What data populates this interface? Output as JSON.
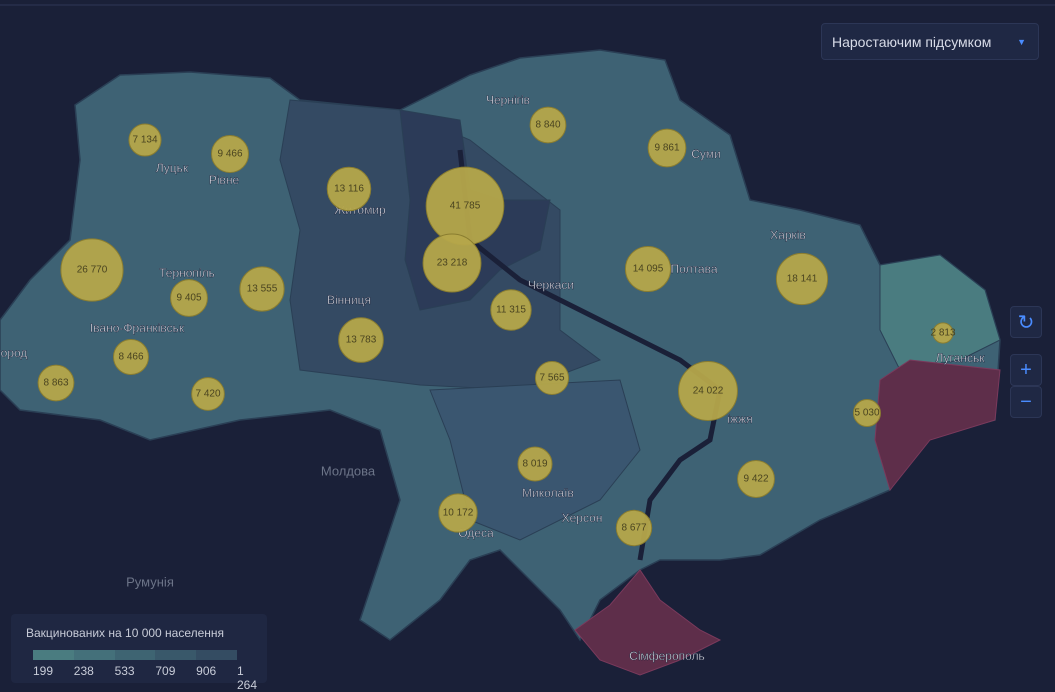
{
  "dropdown": "Наростаючим підсумком",
  "places": {
    "countries": [
      "Молдова",
      "Румунія"
    ],
    "cities": [
      "Луцьк",
      "Рівне",
      "Житомир",
      "Чернігів",
      "Суми",
      "Харків",
      "Полтава",
      "Черкаси",
      "Вінниця",
      "Тернопіль",
      "Івано-Франківськ",
      "город",
      "Луганськ",
      "іжжя",
      "Миколаїв",
      "Херсон",
      "Одеса",
      "Сімферополь"
    ]
  },
  "bubbles": [
    {
      "value": 7134,
      "label": "7 134"
    },
    {
      "value": 9466,
      "label": "9 466"
    },
    {
      "value": 13116,
      "label": "13 116"
    },
    {
      "value": 41785,
      "label": "41 785"
    },
    {
      "value": 8840,
      "label": "8 840"
    },
    {
      "value": 9861,
      "label": "9 861"
    },
    {
      "value": 26770,
      "label": "26 770"
    },
    {
      "value": 9405,
      "label": "9 405"
    },
    {
      "value": 13555,
      "label": "13 555"
    },
    {
      "value": 23218,
      "label": "23 218"
    },
    {
      "value": 11315,
      "label": "11 315"
    },
    {
      "value": 14095,
      "label": "14 095"
    },
    {
      "value": 18141,
      "label": "18 141"
    },
    {
      "value": 2813,
      "label": "2 813"
    },
    {
      "value": 13783,
      "label": "13 783"
    },
    {
      "value": 8466,
      "label": "8 466"
    },
    {
      "value": 8863,
      "label": "8 863"
    },
    {
      "value": 7420,
      "label": "7 420"
    },
    {
      "value": 7565,
      "label": "7 565"
    },
    {
      "value": 24022,
      "label": "24 022"
    },
    {
      "value": 5030,
      "label": "5 030"
    },
    {
      "value": 8019,
      "label": "8 019"
    },
    {
      "value": 9422,
      "label": "9 422"
    },
    {
      "value": 10172,
      "label": "10 172"
    },
    {
      "value": 8677,
      "label": "8 677"
    }
  ],
  "legend": {
    "title": "Вакцинованих на 10 000 населення",
    "ticks": [
      199,
      238,
      533,
      709,
      906,
      {
        "value": 1264,
        "label": "1 264"
      }
    ],
    "colors": [
      "#4a7c80",
      "#44707a",
      "#3e6472",
      "#39586a",
      "#344c62"
    ]
  }
}
